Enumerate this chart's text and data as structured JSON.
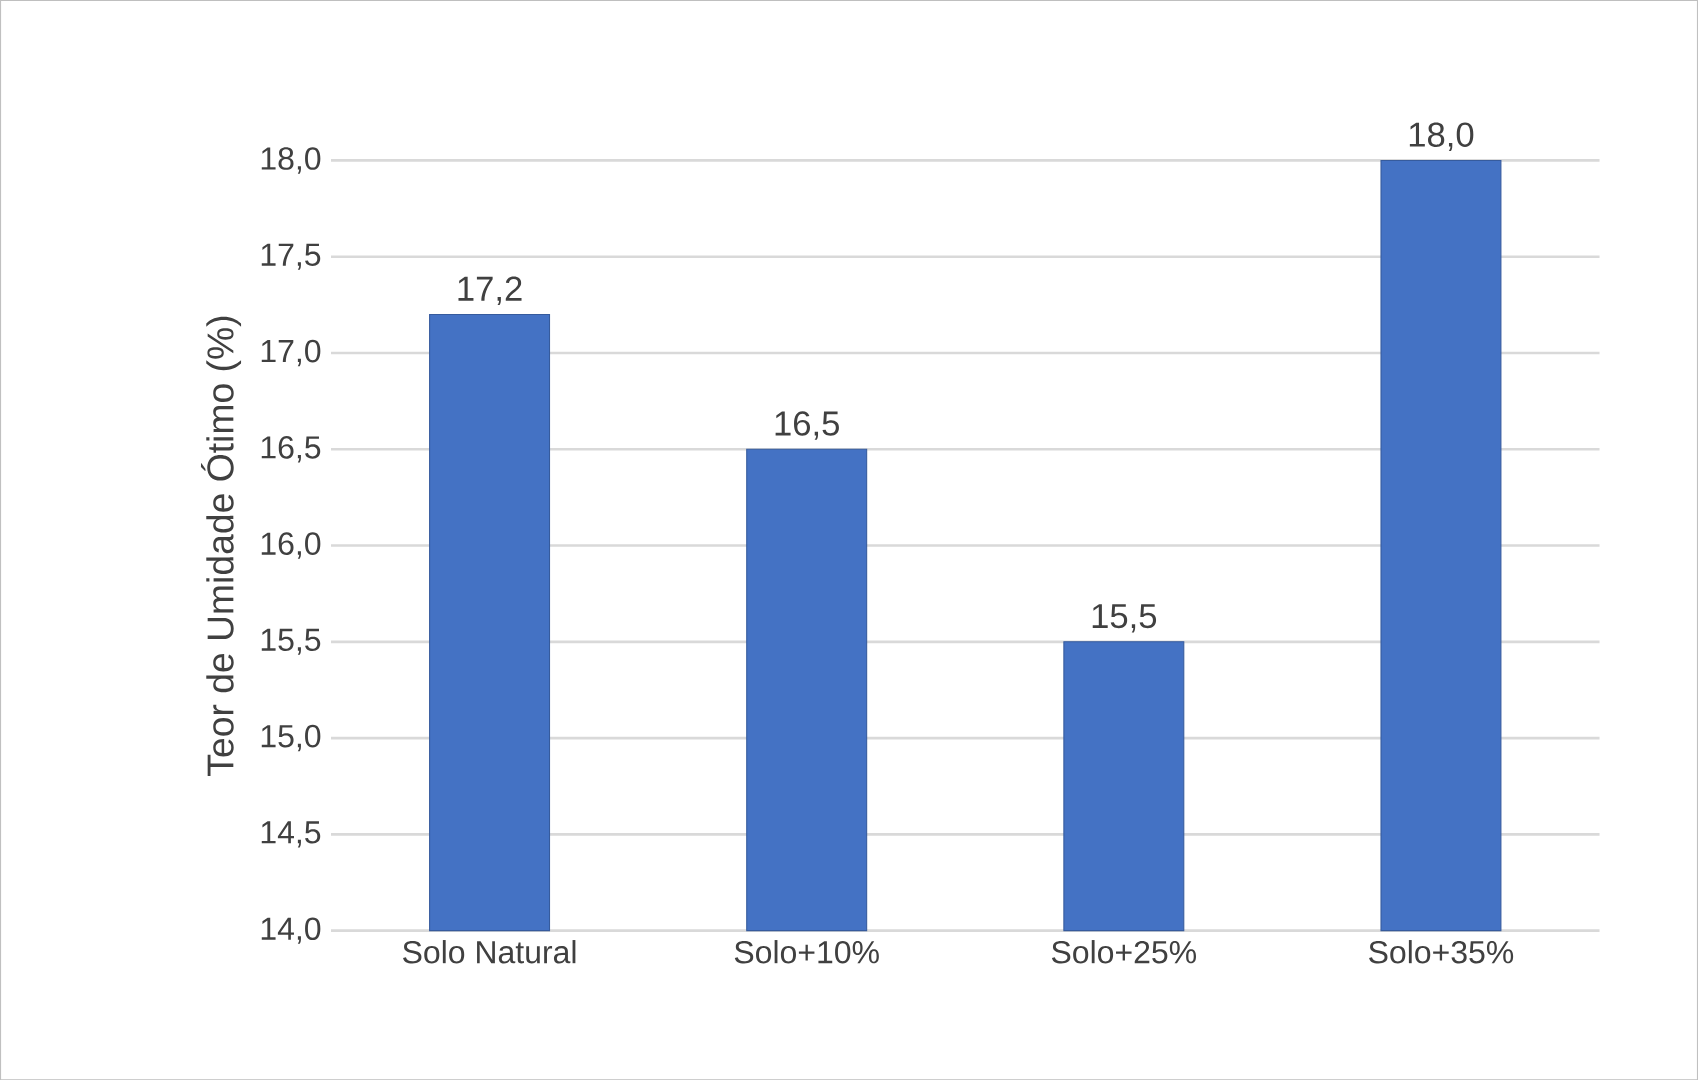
{
  "chart_data": {
    "type": "bar",
    "ylabel": "Teor de Umidade Ótimo (%)",
    "categories": [
      "Solo Natural",
      "Solo+10%",
      "Solo+25%",
      "Solo+35%"
    ],
    "values": [
      17.2,
      16.5,
      15.5,
      18.0
    ],
    "value_labels": [
      "17,2",
      "16,5",
      "15,5",
      "18,0"
    ],
    "color": "#4472c4",
    "ylim": [
      14,
      18
    ],
    "yticks": [
      {
        "value": 14,
        "label": "14,0"
      },
      {
        "value": 14.5,
        "label": "14,5"
      },
      {
        "value": 15,
        "label": "15,0"
      },
      {
        "value": 15.5,
        "label": "15,5"
      },
      {
        "value": 16,
        "label": "16,0"
      },
      {
        "value": 16.5,
        "label": "16,5"
      },
      {
        "value": 17,
        "label": "17,0"
      },
      {
        "value": 17.5,
        "label": "17,5"
      },
      {
        "value": 18,
        "label": "18,0"
      }
    ],
    "grid": "y"
  }
}
